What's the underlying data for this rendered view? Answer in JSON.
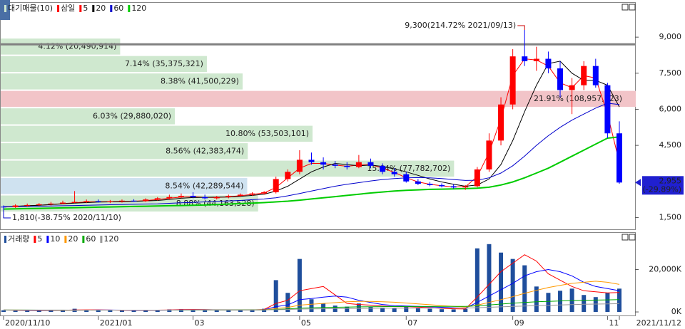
{
  "chart_data": [
    {
      "type": "candlestick",
      "title": "삼일",
      "categories": [
        "2020/11/10",
        null,
        null,
        null,
        null,
        null,
        null,
        null,
        "2021/01",
        null,
        null,
        null,
        null,
        null,
        null,
        null,
        "03",
        null,
        null,
        null,
        null,
        null,
        null,
        null,
        null,
        "05",
        null,
        null,
        null,
        null,
        null,
        null,
        null,
        null,
        "07",
        null,
        null,
        null,
        null,
        null,
        null,
        null,
        null,
        "09",
        null,
        null,
        null,
        null,
        null,
        null,
        null,
        "11",
        "2021/11/12"
      ],
      "open": [
        1950,
        1930,
        2000,
        2020,
        2050,
        2080,
        2120,
        2150,
        2180,
        2150,
        2170,
        2200,
        2180,
        2250,
        2300,
        2350,
        2400,
        2350,
        2300,
        2350,
        2400,
        2450,
        2500,
        2550,
        3100,
        3400,
        3900,
        3800,
        3700,
        3650,
        3600,
        3800,
        3650,
        3400,
        3300,
        3000,
        2900,
        2850,
        2800,
        2750,
        2800,
        3500,
        4700,
        6200,
        8200,
        8000,
        8100,
        7700,
        6800,
        7000,
        7800,
        7000,
        5000
      ],
      "high": [
        2000,
        2050,
        2080,
        2100,
        2150,
        2200,
        2600,
        2250,
        2250,
        2230,
        2250,
        2260,
        2300,
        2350,
        2450,
        2500,
        2550,
        2450,
        2400,
        2450,
        2500,
        2550,
        2600,
        3200,
        3500,
        4300,
        4200,
        4000,
        3850,
        3800,
        4100,
        3950,
        3750,
        3550,
        3400,
        3100,
        2980,
        2920,
        2880,
        2850,
        3600,
        5000,
        6500,
        8500,
        9300,
        8600,
        8400,
        8000,
        7300,
        8000,
        8100,
        7100,
        5500
      ],
      "low": [
        1810,
        1900,
        1950,
        1980,
        2000,
        2050,
        2100,
        2100,
        2120,
        2100,
        2120,
        2150,
        2150,
        2200,
        2250,
        2300,
        2300,
        2250,
        2250,
        2300,
        2350,
        2400,
        2450,
        2500,
        3000,
        3300,
        3700,
        3500,
        3550,
        3500,
        3550,
        3550,
        3300,
        3200,
        2950,
        2850,
        2800,
        2750,
        2700,
        2650,
        2750,
        3400,
        4500,
        6000,
        7800,
        7600,
        7500,
        6500,
        5800,
        6800,
        6900,
        4800,
        2900
      ],
      "close": [
        1930,
        2000,
        2020,
        2050,
        2080,
        2120,
        2150,
        2180,
        2150,
        2170,
        2200,
        2180,
        2250,
        2300,
        2350,
        2400,
        2350,
        2300,
        2350,
        2400,
        2450,
        2500,
        2550,
        3100,
        3400,
        3900,
        3800,
        3700,
        3650,
        3600,
        3800,
        3650,
        3400,
        3300,
        3000,
        2900,
        2850,
        2800,
        2750,
        2800,
        3500,
        4700,
        6200,
        8200,
        8000,
        8100,
        7700,
        6800,
        7000,
        7800,
        7000,
        5000,
        2955
      ],
      "up_color": "#ff0000",
      "down_color": "#0000ff",
      "series": [
        {
          "name": "5",
          "color": "#ff0000",
          "values": [
            1940,
            1960,
            1990,
            2010,
            2040,
            2080,
            2110,
            2150,
            2160,
            2160,
            2170,
            2180,
            2200,
            2250,
            2300,
            2350,
            2370,
            2340,
            2330,
            2360,
            2410,
            2460,
            2520,
            2750,
            3150,
            3550,
            3750,
            3750,
            3680,
            3630,
            3680,
            3700,
            3550,
            3380,
            3150,
            2980,
            2880,
            2820,
            2770,
            2780,
            3200,
            4200,
            5600,
            7400,
            8100,
            8050,
            7800,
            7100,
            6900,
            7400,
            7300,
            5800,
            3800
          ]
        },
        {
          "name": "20",
          "color": "#000000",
          "values": [
            1950,
            1970,
            1990,
            2010,
            2040,
            2070,
            2100,
            2120,
            2140,
            2150,
            2160,
            2170,
            2190,
            2210,
            2250,
            2300,
            2330,
            2340,
            2350,
            2350,
            2380,
            2420,
            2470,
            2600,
            2800,
            3100,
            3400,
            3600,
            3750,
            3700,
            3650,
            3680,
            3620,
            3520,
            3400,
            3250,
            3100,
            2980,
            2880,
            2800,
            2850,
            3100,
            3700,
            4700,
            5900,
            7000,
            7900,
            8000,
            7500,
            7200,
            7200,
            7000,
            6100
          ]
        },
        {
          "name": "60",
          "color": "#0000cc",
          "values": [
            1950,
            1955,
            1960,
            1970,
            1980,
            1990,
            2000,
            2010,
            2020,
            2030,
            2040,
            2050,
            2060,
            2070,
            2090,
            2110,
            2130,
            2150,
            2170,
            2190,
            2210,
            2240,
            2270,
            2320,
            2400,
            2500,
            2600,
            2700,
            2800,
            2880,
            2950,
            3020,
            3080,
            3120,
            3150,
            3160,
            3150,
            3120,
            3080,
            3040,
            3050,
            3150,
            3350,
            3650,
            4050,
            4500,
            4900,
            5250,
            5550,
            5800,
            6050,
            6250,
            6200
          ]
        },
        {
          "name": "120",
          "color": "#00cc00",
          "values": [
            1850,
            1860,
            1870,
            1880,
            1890,
            1900,
            1910,
            1920,
            1930,
            1940,
            1950,
            1960,
            1970,
            1980,
            1990,
            2000,
            2010,
            2020,
            2040,
            2060,
            2080,
            2100,
            2120,
            2150,
            2180,
            2220,
            2270,
            2320,
            2370,
            2420,
            2470,
            2520,
            2560,
            2600,
            2630,
            2650,
            2670,
            2680,
            2690,
            2700,
            2720,
            2760,
            2850,
            2980,
            3150,
            3350,
            3550,
            3800,
            4050,
            4300,
            4550,
            4800,
            4850
          ]
        }
      ],
      "ylim": [
        980,
        10130
      ],
      "yticks": [
        {
          "value": 1500,
          "label": "1,500"
        },
        {
          "value": 4500,
          "label": "4,500"
        },
        {
          "value": 6000,
          "label": "6,000"
        },
        {
          "value": 7500,
          "label": "7,500"
        },
        {
          "value": 9000,
          "label": "9,000"
        }
      ],
      "volume_profile": {
        "name": "대기매물(10)",
        "bins": [
          1720,
          2445,
          3170,
          3895,
          4620,
          5345,
          6070,
          6795,
          7520,
          8245,
          8970
        ],
        "values": [
          44163528,
          42289544,
          77782702,
          42383474,
          53503101,
          29880020,
          108957323,
          41500229,
          35375321,
          20490914
        ],
        "value_labels": [
          "8.88% (44,163,528)",
          "8.54% (42,289,544)",
          "15.64% (77,782,702)",
          "8.56% (42,383,474)",
          "10.80% (53,503,101)",
          "6.03% (29,880,020)",
          "21.91% (108,957,323)",
          "8.38% (41,500,229)",
          "7.14% (35,375,321)",
          "4.12% (20,490,914)"
        ],
        "color": "#cfe8cf",
        "max_color": "#f2c4c8",
        "current_color": "#cfe2f0"
      },
      "reference_line": {
        "value": 8700,
        "color": "#808080"
      },
      "high_annotation": {
        "index": 44,
        "value": 9300,
        "label": "9,300(214.72% 2021/09/13)"
      },
      "low_annotation": {
        "index": 0,
        "value": 1810,
        "label": "1,810(-38.75% 2020/11/10)"
      },
      "last_price": {
        "value": 2955,
        "label": "2,955"
      },
      "last_change": {
        "value": -29.89,
        "label": "(-29.89%)"
      }
    },
    {
      "type": "bar",
      "title": "거래량",
      "color": "#1f4e9c",
      "values": [
        800,
        600,
        500,
        700,
        900,
        1000,
        1500,
        900,
        700,
        800,
        700,
        600,
        900,
        1000,
        1200,
        1300,
        1100,
        900,
        800,
        900,
        1000,
        1200,
        1500,
        15000,
        9000,
        25000,
        6000,
        4000,
        3000,
        2500,
        4000,
        2500,
        2000,
        1800,
        2500,
        2000,
        1500,
        1300,
        1200,
        1500,
        30000,
        32000,
        28000,
        25000,
        22000,
        12000,
        9000,
        10000,
        11000,
        8000,
        7000,
        9000,
        11000
      ],
      "series": [
        {
          "name": "5",
          "color": "#ff0000",
          "values": [
            900,
            800,
            700,
            650,
            700,
            800,
            950,
            1000,
            1000,
            900,
            800,
            750,
            800,
            850,
            950,
            1100,
            1150,
            1100,
            1000,
            900,
            900,
            1000,
            1150,
            4000,
            5500,
            10000,
            11000,
            12000,
            8000,
            4000,
            3500,
            3200,
            2800,
            2500,
            2500,
            2300,
            2000,
            1700,
            1500,
            1400,
            7000,
            13000,
            19000,
            23000,
            27000,
            24000,
            18000,
            15000,
            12000,
            10000,
            9500,
            9000,
            9200
          ]
        },
        {
          "name": "10",
          "color": "#0000ff",
          "values": [
            900,
            850,
            800,
            750,
            750,
            750,
            800,
            850,
            900,
            880,
            850,
            800,
            780,
            800,
            850,
            900,
            950,
            1000,
            1000,
            1000,
            950,
            950,
            1000,
            2500,
            3300,
            5800,
            6300,
            7000,
            7500,
            7000,
            5500,
            4500,
            3500,
            3000,
            2800,
            2600,
            2400,
            2200,
            2000,
            1800,
            4500,
            7500,
            10500,
            13500,
            17000,
            19000,
            20000,
            19000,
            17000,
            14000,
            12000,
            11000,
            10000
          ]
        },
        {
          "name": "20",
          "color": "#ff9900",
          "values": [
            900,
            880,
            860,
            840,
            820,
            800,
            800,
            820,
            840,
            850,
            850,
            840,
            830,
            830,
            840,
            860,
            880,
            900,
            920,
            940,
            950,
            960,
            980,
            1600,
            2100,
            3200,
            3600,
            4000,
            4400,
            4800,
            5000,
            5000,
            4800,
            4600,
            4200,
            3800,
            3400,
            3000,
            2600,
            2300,
            3200,
            4500,
            5800,
            7200,
            8800,
            10200,
            11500,
            12500,
            13500,
            14000,
            14500,
            14000,
            13000
          ]
        },
        {
          "name": "60",
          "color": "#00aa00",
          "values": [
            900,
            890,
            880,
            870,
            860,
            850,
            850,
            850,
            850,
            850,
            850,
            850,
            850,
            850,
            850,
            860,
            870,
            880,
            890,
            900,
            910,
            920,
            930,
            1200,
            1400,
            1800,
            1950,
            2100,
            2200,
            2300,
            2400,
            2450,
            2500,
            2520,
            2550,
            2570,
            2580,
            2600,
            2600,
            2600,
            2900,
            3300,
            3700,
            4100,
            4500,
            4800,
            5000,
            5200,
            5400,
            5500,
            5600,
            5700,
            5800
          ]
        },
        {
          "name": "120",
          "color": "#999999",
          "values": [
            900,
            895,
            890,
            885,
            880,
            875,
            870,
            870,
            870,
            870,
            870,
            870,
            870,
            870,
            870,
            875,
            880,
            885,
            890,
            895,
            900,
            905,
            910,
            1050,
            1150,
            1350,
            1450,
            1500,
            1550,
            1600,
            1650,
            1700,
            1750,
            1780,
            1800,
            1820,
            1840,
            1850,
            1860,
            1870,
            2000,
            2200,
            2400,
            2600,
            2800,
            3000,
            3150,
            3300,
            3450,
            3600,
            3700,
            3800,
            3900
          ]
        }
      ],
      "ylim": [
        -2000,
        36300
      ],
      "yticks": [
        {
          "value": 0,
          "label": "0K"
        },
        {
          "value": 20000,
          "label": "20,000K"
        }
      ]
    }
  ]
}
